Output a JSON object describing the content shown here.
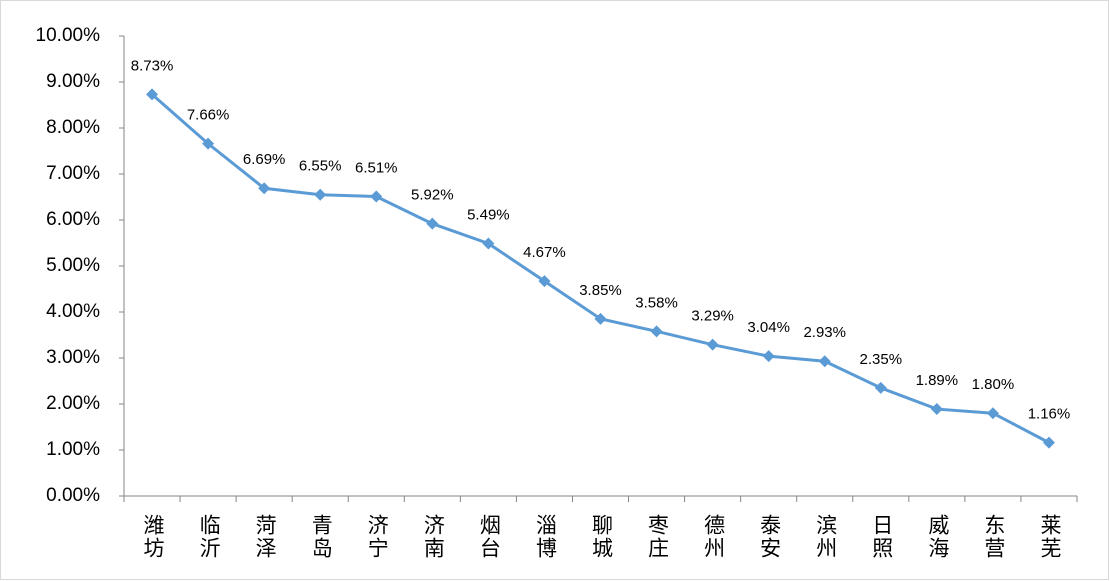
{
  "chart_data": {
    "type": "line",
    "categories": [
      "潍坊",
      "临沂",
      "菏泽",
      "青岛",
      "济宁",
      "济南",
      "烟台",
      "淄博",
      "聊城",
      "枣庄",
      "德州",
      "泰安",
      "滨州",
      "日照",
      "威海",
      "东营",
      "莱芜"
    ],
    "series": [
      {
        "color": "#5b9bd5",
        "values": [
          8.73,
          7.66,
          6.69,
          6.55,
          6.51,
          5.92,
          5.49,
          4.67,
          3.85,
          3.58,
          3.29,
          3.04,
          2.93,
          2.35,
          1.89,
          1.8,
          1.16
        ],
        "value_labels": [
          "8.73%",
          "7.66%",
          "6.69%",
          "6.55%",
          "6.51%",
          "5.92%",
          "5.49%",
          "4.67%",
          "3.85%",
          "3.58%",
          "3.29%",
          "3.04%",
          "2.93%",
          "2.35%",
          "1.89%",
          "1.80%",
          "1.16%"
        ]
      }
    ],
    "ylim": [
      0,
      10
    ],
    "yticks": [
      {
        "value": 0,
        "label": "0.00%"
      },
      {
        "value": 1,
        "label": "1.00%"
      },
      {
        "value": 2,
        "label": "2.00%"
      },
      {
        "value": 3,
        "label": "3.00%"
      },
      {
        "value": 4,
        "label": "4.00%"
      },
      {
        "value": 5,
        "label": "5.00%"
      },
      {
        "value": 6,
        "label": "6.00%"
      },
      {
        "value": 7,
        "label": "7.00%"
      },
      {
        "value": 8,
        "label": "8.00%"
      },
      {
        "value": 9,
        "label": "9.00%"
      },
      {
        "value": 10,
        "label": "10.00%"
      }
    ]
  }
}
